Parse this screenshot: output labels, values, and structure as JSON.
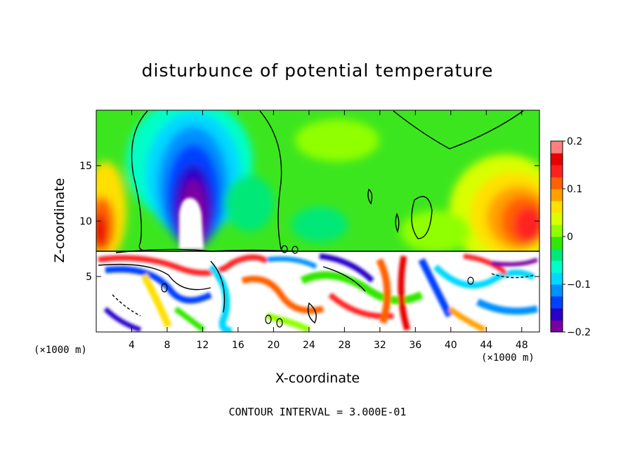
{
  "chart_data": {
    "type": "heatmap",
    "title": "disturbunce of potential temperature",
    "xlabel": "X-coordinate",
    "ylabel": "Z-coordinate",
    "x_unit_label": "(×1000 m)",
    "x_unit_label_right": "(×1000 m)",
    "xlim": [
      0,
      50
    ],
    "ylim": [
      0,
      20
    ],
    "x_ticks": [
      4,
      8,
      12,
      16,
      20,
      24,
      28,
      32,
      36,
      40,
      44,
      48
    ],
    "y_ticks": [
      5,
      10,
      15
    ],
    "colorbar": {
      "range": [
        -0.2,
        0.2
      ],
      "tick_values": [
        0.2,
        0.1,
        0,
        -0.1,
        -0.2
      ],
      "tick_labels": [
        "0.2",
        "0.1",
        "0",
        "−0.1",
        "−0.2"
      ],
      "colors": [
        "#7a00a0",
        "#2800c8",
        "#0040ff",
        "#0090ff",
        "#00d8ff",
        "#00ffc8",
        "#00e878",
        "#30e800",
        "#90ff00",
        "#d8ff00",
        "#ffe000",
        "#ffa000",
        "#ff6000",
        "#ff2020",
        "#e80000",
        "#ff8080"
      ]
    },
    "features": [
      {
        "kind": "cold_anomaly",
        "x": 11,
        "z": 14,
        "value": -0.2
      },
      {
        "kind": "warm_anomaly",
        "x": 1,
        "z": 10.5,
        "value": 0.15
      },
      {
        "kind": "warm_anomaly",
        "x": 48,
        "z": 10.5,
        "value": 0.13
      },
      {
        "kind": "inversion_level",
        "z": 7.3
      },
      {
        "kind": "turbulent_layer",
        "z_range": [
          0,
          7.3
        ]
      }
    ]
  },
  "contour_text": "CONTOUR INTERVAL = 3.000E-01"
}
